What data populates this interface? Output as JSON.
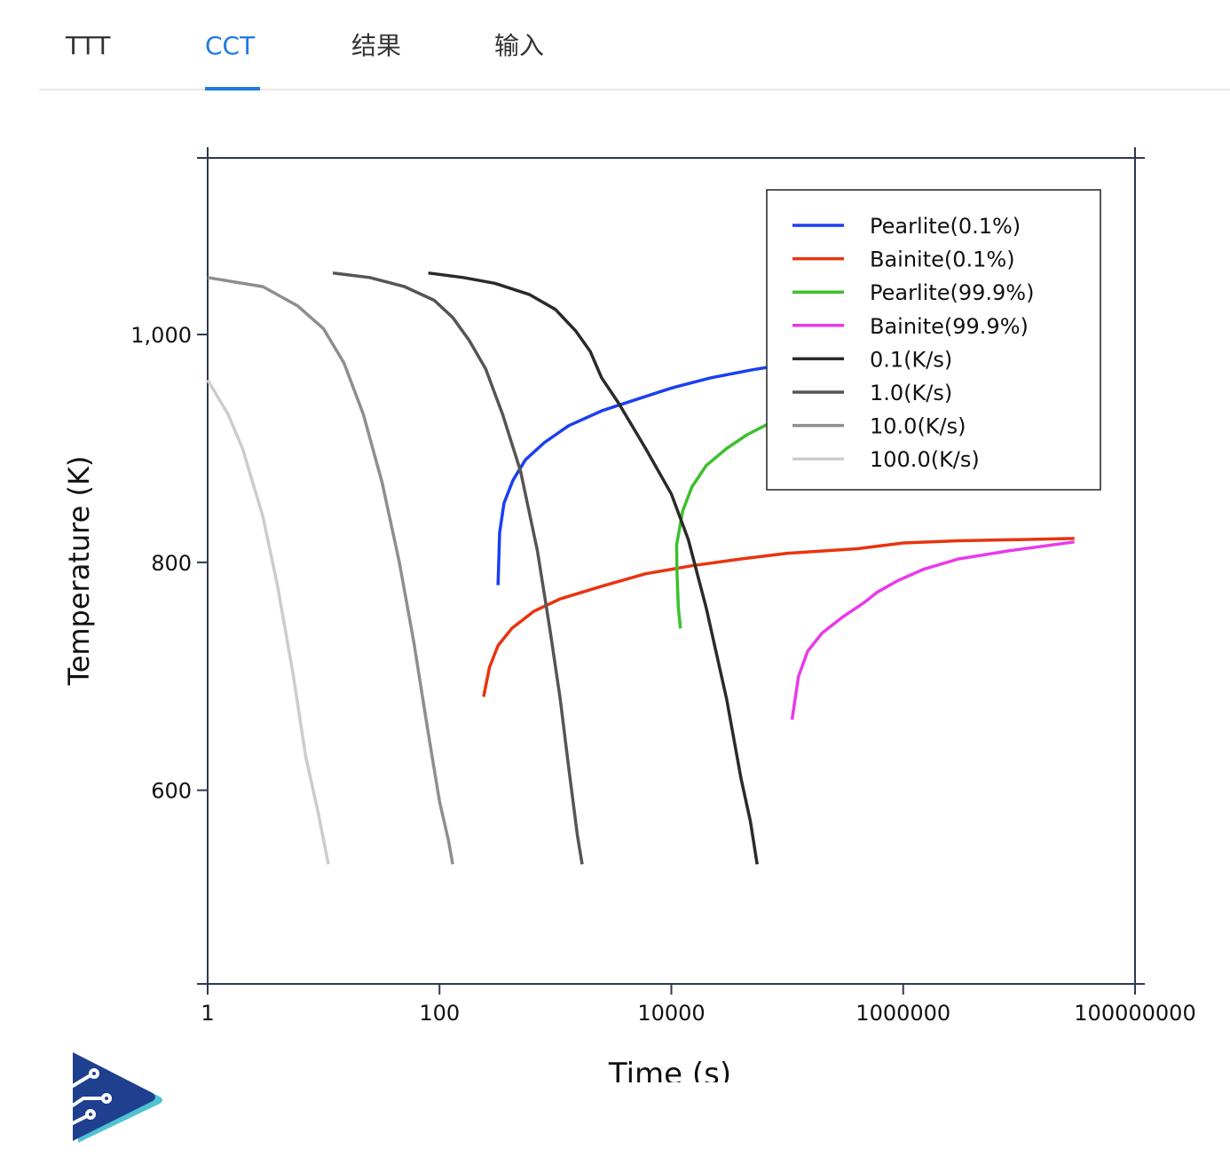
{
  "tabs": [
    {
      "label": "TTT",
      "active": false
    },
    {
      "label": "CCT",
      "active": true
    },
    {
      "label": "结果",
      "active": false
    },
    {
      "label": "输入",
      "active": false
    }
  ],
  "colors": {
    "accent": "#1f7ae0",
    "axis": "#2e3a4e",
    "logo_dark": "#1f3f8f",
    "logo_light": "#4fc3d3"
  },
  "logo_icon": "play-circuit-logo-icon",
  "chart_data": {
    "type": "line",
    "xscale": "log",
    "xlabel": "Time (s)",
    "ylabel": "Temperature (K)",
    "xlim": [
      1,
      100000000
    ],
    "ylim": [
      430,
      1155
    ],
    "xticks": [
      1,
      100,
      10000,
      1000000,
      100000000
    ],
    "xtick_labels": [
      "1",
      "100",
      "10000",
      "1000000",
      "100000000"
    ],
    "yticks": [
      600,
      800,
      1000
    ],
    "ytick_labels": [
      "600",
      "800",
      "1,000"
    ],
    "legend_position": "top-right",
    "series": [
      {
        "name": "Pearlite(0.1%)",
        "color": "#1a3ff0",
        "points": [
          [
            320,
            780
          ],
          [
            330,
            826
          ],
          [
            360,
            852
          ],
          [
            430,
            872
          ],
          [
            550,
            890
          ],
          [
            800,
            905
          ],
          [
            1300,
            920
          ],
          [
            2500,
            933
          ],
          [
            5000,
            943
          ],
          [
            10000,
            953
          ],
          [
            22000,
            962
          ],
          [
            50000,
            969
          ],
          [
            100000,
            974
          ],
          [
            200000,
            977
          ]
        ]
      },
      {
        "name": "Bainite(0.1%)",
        "color": "#e8340f",
        "points": [
          [
            240,
            682
          ],
          [
            270,
            708
          ],
          [
            320,
            727
          ],
          [
            420,
            742
          ],
          [
            650,
            757
          ],
          [
            1100,
            768
          ],
          [
            2500,
            779
          ],
          [
            6000,
            790
          ],
          [
            15000,
            797
          ],
          [
            40000,
            803
          ],
          [
            100000,
            808
          ],
          [
            400000,
            812
          ],
          [
            1000000,
            817
          ],
          [
            3000000,
            819
          ],
          [
            10000000,
            820
          ],
          [
            30000000,
            821
          ]
        ]
      },
      {
        "name": "Pearlite(99.9%)",
        "color": "#3cc02d",
        "points": [
          [
            12000,
            742
          ],
          [
            11500,
            760
          ],
          [
            11200,
            790
          ],
          [
            11100,
            815
          ],
          [
            12500,
            845
          ],
          [
            15000,
            866
          ],
          [
            20000,
            885
          ],
          [
            30000,
            900
          ],
          [
            45000,
            912
          ],
          [
            70000,
            922
          ],
          [
            100000,
            928
          ]
        ]
      },
      {
        "name": "Bainite(99.9%)",
        "color": "#e83aeb",
        "points": [
          [
            110000,
            662
          ],
          [
            125000,
            700
          ],
          [
            150000,
            722
          ],
          [
            200000,
            738
          ],
          [
            300000,
            752
          ],
          [
            450000,
            764
          ],
          [
            600000,
            774
          ],
          [
            900000,
            784
          ],
          [
            1500000,
            794
          ],
          [
            3000000,
            803
          ],
          [
            8000000,
            810
          ],
          [
            30000000,
            818
          ]
        ]
      },
      {
        "name": "0.1(K/s)",
        "color": "#2a2a2a",
        "points": [
          [
            80,
            1054
          ],
          [
            160,
            1050
          ],
          [
            300,
            1045
          ],
          [
            600,
            1035
          ],
          [
            1000,
            1022
          ],
          [
            1500,
            1003
          ],
          [
            2000,
            985
          ],
          [
            2500,
            962
          ],
          [
            3500,
            940
          ],
          [
            6000,
            900
          ],
          [
            10000,
            860
          ],
          [
            14000,
            820
          ],
          [
            20000,
            760
          ],
          [
            30000,
            680
          ],
          [
            40000,
            610
          ],
          [
            48000,
            573
          ],
          [
            55000,
            535
          ]
        ]
      },
      {
        "name": "1.0(K/s)",
        "color": "#555555",
        "points": [
          [
            12,
            1054
          ],
          [
            25,
            1050
          ],
          [
            50,
            1042
          ],
          [
            90,
            1030
          ],
          [
            130,
            1015
          ],
          [
            180,
            995
          ],
          [
            250,
            970
          ],
          [
            350,
            930
          ],
          [
            500,
            880
          ],
          [
            700,
            810
          ],
          [
            900,
            740
          ],
          [
            1100,
            680
          ],
          [
            1300,
            620
          ],
          [
            1550,
            560
          ],
          [
            1700,
            535
          ]
        ]
      },
      {
        "name": "10.0(K/s)",
        "color": "#8e8e8e",
        "points": [
          [
            1,
            1050
          ],
          [
            3,
            1042
          ],
          [
            6,
            1025
          ],
          [
            10,
            1005
          ],
          [
            15,
            975
          ],
          [
            22,
            930
          ],
          [
            32,
            870
          ],
          [
            45,
            800
          ],
          [
            60,
            730
          ],
          [
            80,
            650
          ],
          [
            100,
            590
          ],
          [
            120,
            555
          ],
          [
            130,
            535
          ]
        ]
      },
      {
        "name": "100.0(K/s)",
        "color": "#cccccc",
        "points": [
          [
            1,
            960
          ],
          [
            1.5,
            930
          ],
          [
            2,
            900
          ],
          [
            3,
            840
          ],
          [
            4,
            780
          ],
          [
            5.5,
            700
          ],
          [
            7,
            630
          ],
          [
            9,
            580
          ],
          [
            11,
            535
          ]
        ]
      }
    ]
  }
}
